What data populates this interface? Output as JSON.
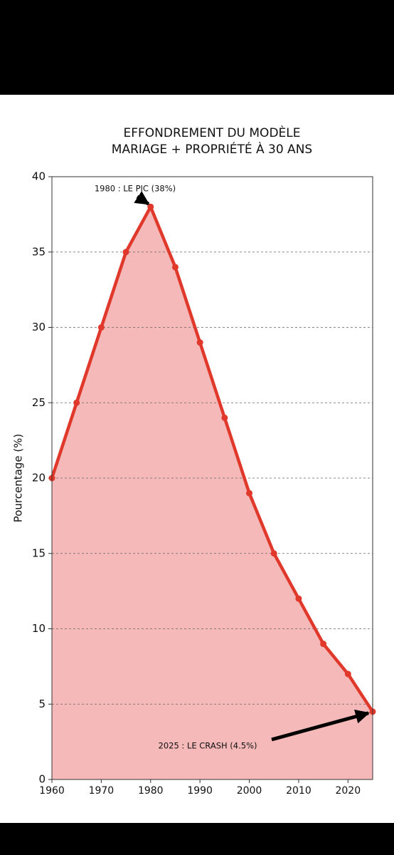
{
  "chart_data": {
    "type": "area-line",
    "title": [
      "EFFONDREMENT DU MODÈLE",
      "MARIAGE + PROPRIÉTÉ À 30 ANS"
    ],
    "y_label": "Pourcentage (%)",
    "x": [
      1960,
      1965,
      1970,
      1975,
      1980,
      1985,
      1990,
      1995,
      2000,
      2005,
      2010,
      2015,
      2020,
      2025
    ],
    "series": [
      {
        "color": "#e0392c",
        "fill": "#f5b9b9",
        "values": [
          20,
          25,
          30,
          35,
          38,
          34,
          29,
          24,
          19,
          15,
          12,
          9,
          7,
          4.5
        ]
      }
    ],
    "xlim": [
      1960,
      2025
    ],
    "xticks": [
      1960,
      1970,
      1980,
      1990,
      2000,
      2010,
      2020
    ],
    "ylim": [
      0,
      40
    ],
    "yticks": [
      0,
      5,
      10,
      15,
      20,
      25,
      30,
      35,
      40
    ],
    "grid": true,
    "annotations": [
      {
        "text": "1980 : LE PIC (38%)",
        "x": 1980,
        "y": 38
      },
      {
        "text": "2025 : LE CRASH (4.5%)",
        "x": 2025,
        "y": 4.5
      }
    ]
  }
}
